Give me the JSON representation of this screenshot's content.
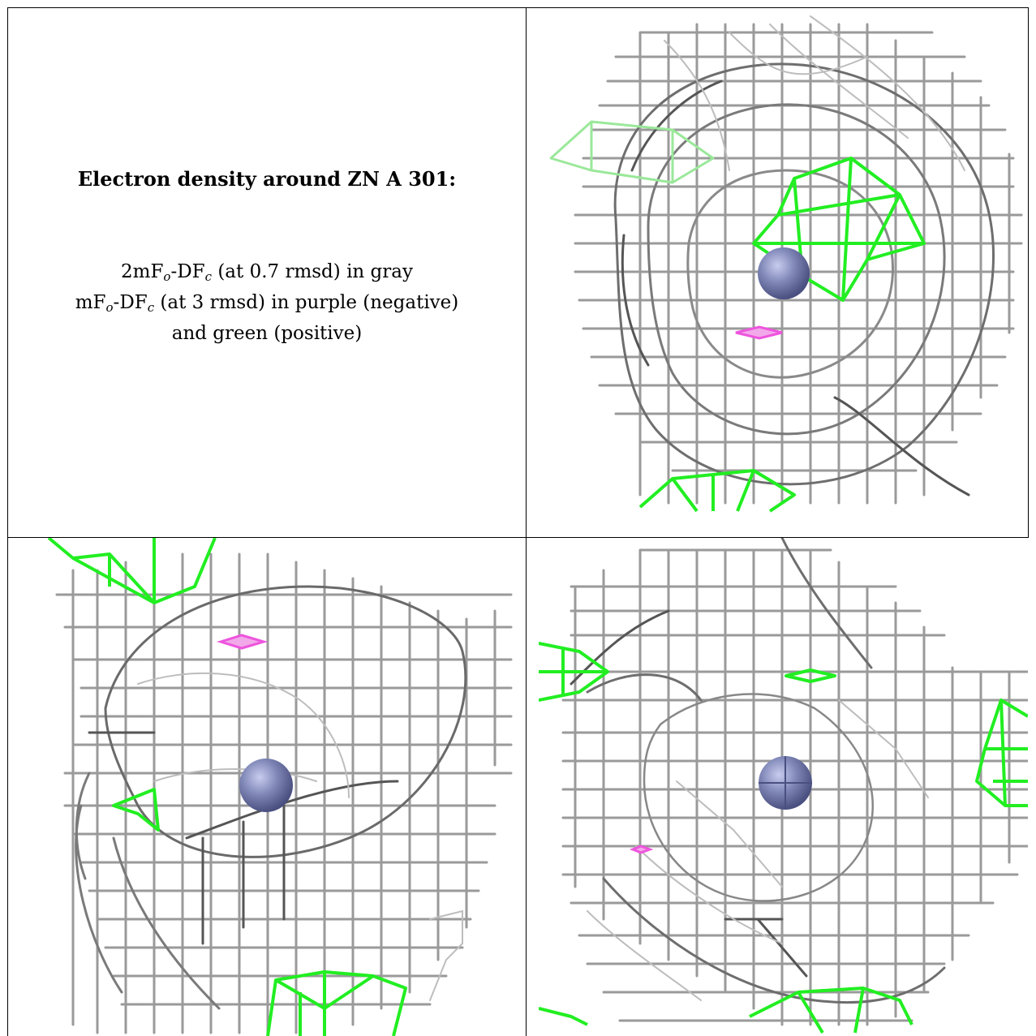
{
  "caption": {
    "title": "Electron density around ZN A 301:",
    "line1": {
      "prefix": "2mF",
      "sub1": "o",
      "mid": "-DF",
      "sub2": "c",
      "suffix": " (at 0.7 rmsd) in gray"
    },
    "line2": {
      "prefix": "mF",
      "sub1": "o",
      "mid": "-DF",
      "sub2": "c",
      "suffix": " (at 3 rmsd) in purple (negative)"
    },
    "line3": "and green (positive)"
  },
  "colors": {
    "map_2fofc": "#8a8a8a",
    "map_2fofc_dark": "#4d4d4d",
    "map_fofc_positive": "#22ee22",
    "map_fofc_negative": "#ee55dd",
    "zinc_atom": "#8088b8",
    "rules": "#000000"
  },
  "panels": [
    {
      "name": "view-top-right",
      "atom": "ZN"
    },
    {
      "name": "view-bottom-left",
      "atom": "ZN"
    },
    {
      "name": "view-bottom-right",
      "atom": "ZN"
    }
  ]
}
